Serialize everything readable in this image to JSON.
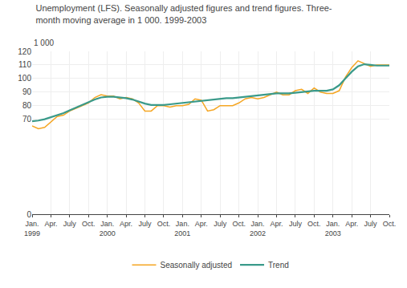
{
  "chart_data": {
    "type": "line",
    "title": "Unemployment (LFS). Seasonally adjusted figures and trend figures. Three-\nmonth moving average in 1 000. 1999-2003",
    "ylabel": "1 000",
    "categories": [
      "Jan.\n1999",
      null,
      null,
      "Apr.",
      null,
      null,
      "July",
      null,
      null,
      "Oct.",
      null,
      null,
      "Jan.\n2000",
      null,
      null,
      "Apr.",
      null,
      null,
      "July",
      null,
      null,
      "Oct.",
      null,
      null,
      "Jan.\n2001",
      null,
      null,
      "Apr.",
      null,
      null,
      "July",
      null,
      null,
      "Oct.",
      null,
      null,
      "Jan.\n2002",
      null,
      null,
      "Apr.",
      null,
      null,
      "July",
      null,
      null,
      "Oct.",
      null,
      null,
      "Jan.\n2003",
      null,
      null,
      "Apr.",
      null,
      null,
      "July",
      null,
      null,
      "Oct."
    ],
    "series": [
      {
        "name": "Seasonally adjusted",
        "color": "#f5a623",
        "values": [
          65,
          63,
          64,
          68,
          72,
          73,
          76,
          78,
          80,
          82,
          86,
          88,
          87,
          87,
          85,
          86,
          85,
          82,
          76,
          76,
          80,
          80,
          79,
          80,
          80,
          81,
          85,
          84,
          76,
          77,
          80,
          80,
          80,
          82,
          85,
          86,
          85,
          86,
          88,
          90,
          88,
          88,
          91,
          92,
          89,
          93,
          90,
          89,
          89,
          91,
          101,
          108,
          113,
          111,
          109,
          110,
          110,
          110
        ]
      },
      {
        "name": "Trend",
        "color": "#3a9a8a",
        "values": [
          68.5,
          69,
          70,
          71.5,
          73,
          74.5,
          76.5,
          78.5,
          80.5,
          82.5,
          84.5,
          86,
          86.5,
          86.5,
          86,
          85.5,
          84.5,
          83,
          81.5,
          80.5,
          80.5,
          80.5,
          81,
          81.5,
          82,
          82.5,
          83,
          83.5,
          84,
          84.5,
          85,
          85.5,
          85.5,
          86,
          86.5,
          87,
          87.5,
          88,
          88.5,
          89,
          89,
          89,
          89.5,
          90,
          90.5,
          91,
          91,
          91,
          92,
          95,
          100,
          105,
          109,
          110.5,
          110,
          109.5,
          109.5,
          109.5
        ]
      }
    ],
    "ylim": [
      0,
      120
    ],
    "yticks": [
      0,
      70,
      80,
      90,
      100,
      110,
      120
    ],
    "grid": true,
    "legend": "bottom"
  }
}
